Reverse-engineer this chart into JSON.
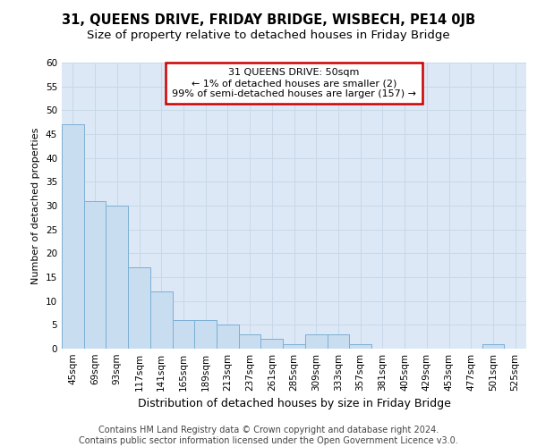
{
  "title": "31, QUEENS DRIVE, FRIDAY BRIDGE, WISBECH, PE14 0JB",
  "subtitle": "Size of property relative to detached houses in Friday Bridge",
  "xlabel": "Distribution of detached houses by size in Friday Bridge",
  "ylabel": "Number of detached properties",
  "categories": [
    "45sqm",
    "69sqm",
    "93sqm",
    "117sqm",
    "141sqm",
    "165sqm",
    "189sqm",
    "213sqm",
    "237sqm",
    "261sqm",
    "285sqm",
    "309sqm",
    "333sqm",
    "357sqm",
    "381sqm",
    "405sqm",
    "429sqm",
    "453sqm",
    "477sqm",
    "501sqm",
    "525sqm"
  ],
  "values": [
    47,
    31,
    30,
    17,
    12,
    6,
    6,
    5,
    3,
    2,
    1,
    3,
    3,
    1,
    0,
    0,
    0,
    0,
    0,
    1,
    0
  ],
  "bar_color": "#c9ddf0",
  "bar_edge_color": "#7bafd4",
  "annotation_text": "31 QUEENS DRIVE: 50sqm\n← 1% of detached houses are smaller (2)\n99% of semi-detached houses are larger (157) →",
  "annotation_box_edge_color": "#cc0000",
  "annotation_box_face_color": "#ffffff",
  "ylim": [
    0,
    60
  ],
  "yticks": [
    0,
    5,
    10,
    15,
    20,
    25,
    30,
    35,
    40,
    45,
    50,
    55,
    60
  ],
  "grid_color": "#c8d8e8",
  "background_color": "#dce8f5",
  "footer_text": "Contains HM Land Registry data © Crown copyright and database right 2024.\nContains public sector information licensed under the Open Government Licence v3.0.",
  "title_fontsize": 10.5,
  "subtitle_fontsize": 9.5,
  "ylabel_fontsize": 8,
  "xlabel_fontsize": 9,
  "tick_fontsize": 7.5,
  "annotation_fontsize": 8,
  "footer_fontsize": 7
}
